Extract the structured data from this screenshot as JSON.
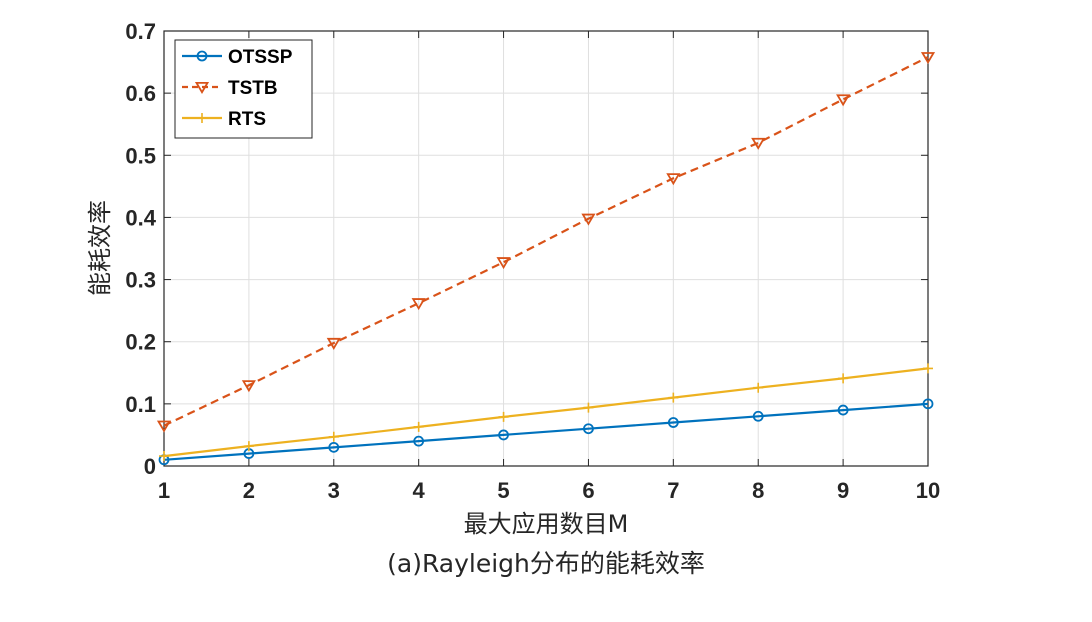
{
  "chart_data": {
    "type": "line",
    "title": "",
    "caption": "(a)Rayleigh分布的能耗效率",
    "xlabel": "最大应用数目M",
    "ylabel": "能耗效率",
    "x": [
      1,
      2,
      3,
      4,
      5,
      6,
      7,
      8,
      9,
      10
    ],
    "xlim": [
      1,
      10
    ],
    "ylim": [
      0,
      0.7
    ],
    "xticks": [
      "1",
      "2",
      "3",
      "4",
      "5",
      "6",
      "7",
      "8",
      "9",
      "10"
    ],
    "yticks": [
      "0",
      "0.1",
      "0.2",
      "0.3",
      "0.4",
      "0.5",
      "0.6",
      "0.7"
    ],
    "grid": true,
    "legend_position": "top-left",
    "series": [
      {
        "name": "OTSSP",
        "color": "#0072BD",
        "line_style": "solid",
        "marker": "circle",
        "values": [
          0.01,
          0.02,
          0.03,
          0.04,
          0.05,
          0.06,
          0.07,
          0.08,
          0.09,
          0.1
        ]
      },
      {
        "name": "TSTB",
        "color": "#D95319",
        "line_style": "dashed",
        "marker": "triangle-down",
        "values": [
          0.065,
          0.13,
          0.198,
          0.262,
          0.328,
          0.398,
          0.463,
          0.52,
          0.59,
          0.658
        ]
      },
      {
        "name": "RTS",
        "color": "#EDB120",
        "line_style": "solid",
        "marker": "plus",
        "values": [
          0.016,
          0.032,
          0.047,
          0.063,
          0.079,
          0.094,
          0.11,
          0.126,
          0.141,
          0.157
        ]
      }
    ]
  }
}
